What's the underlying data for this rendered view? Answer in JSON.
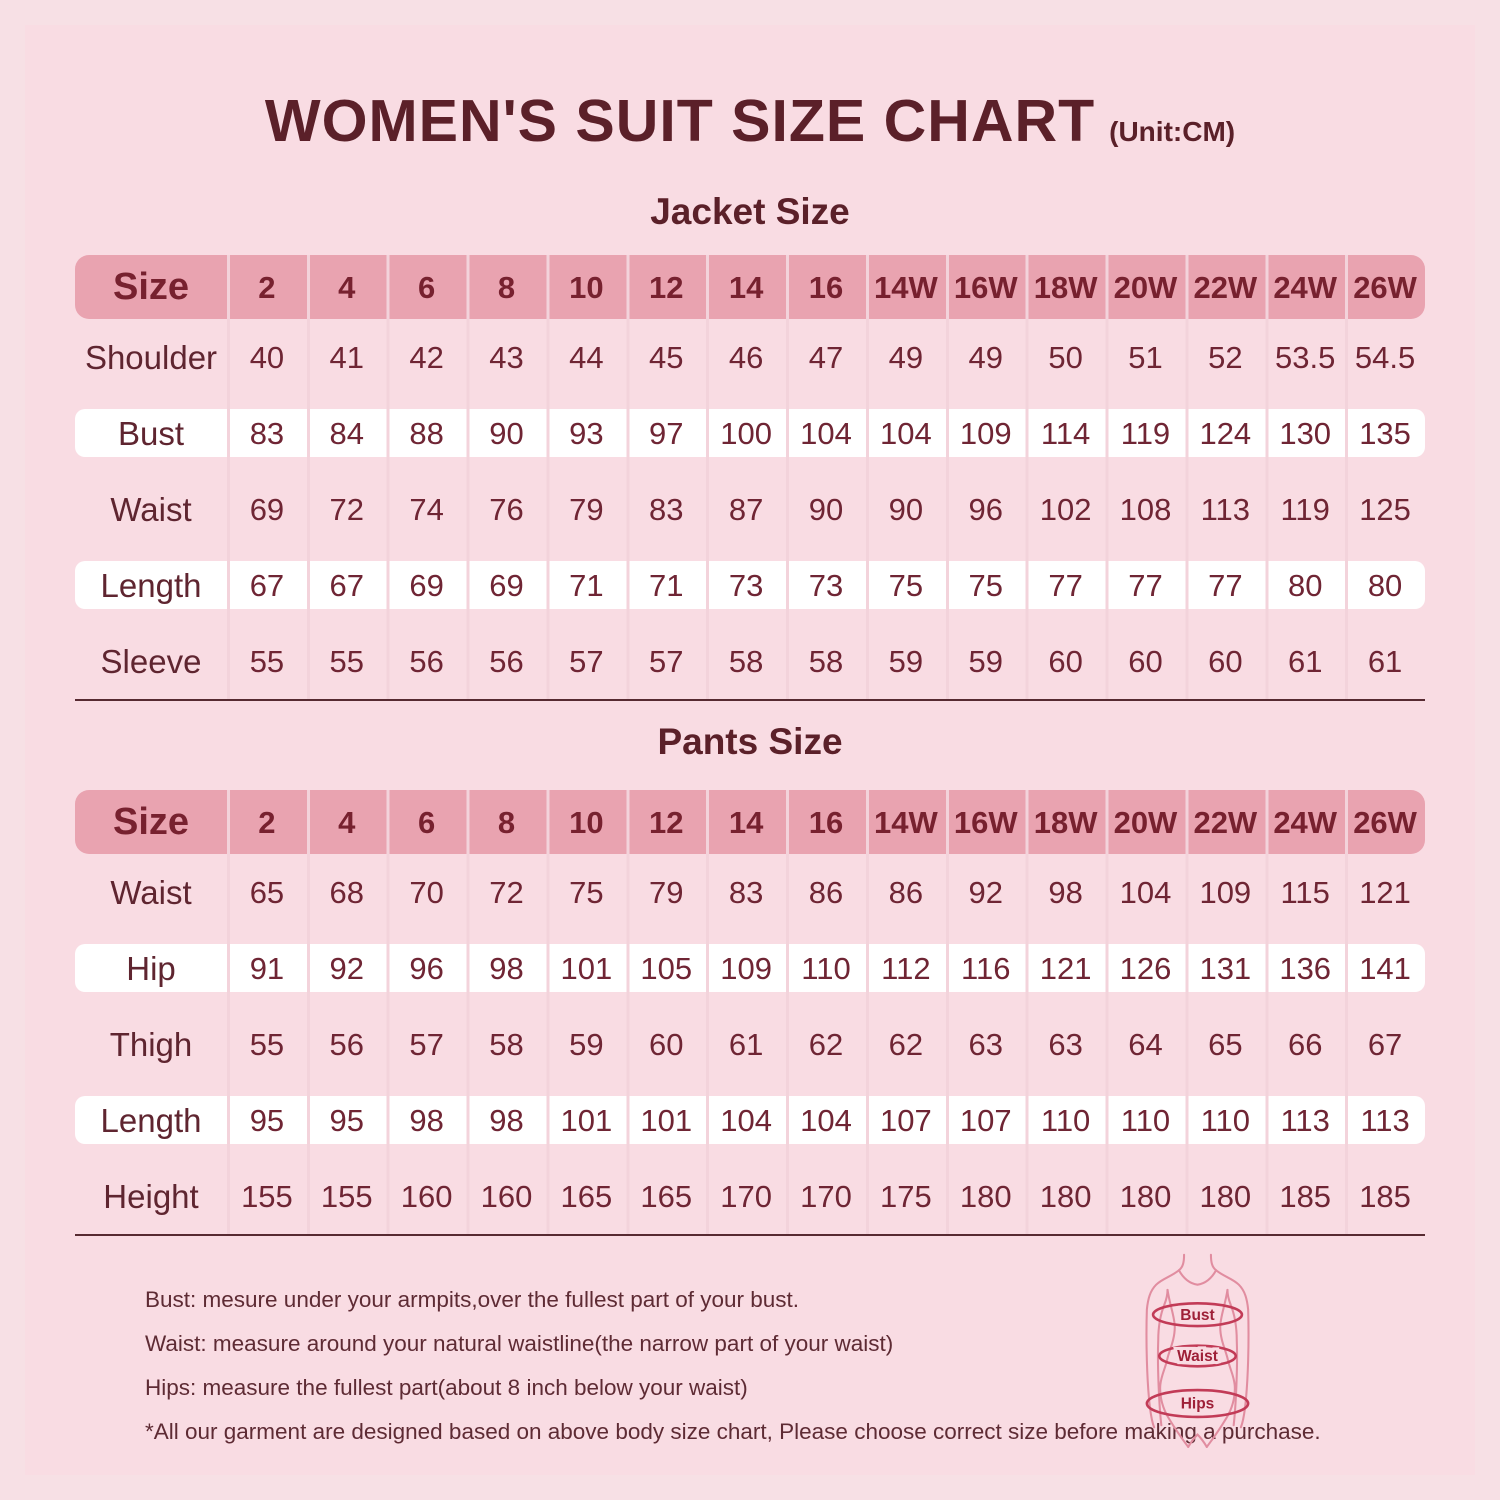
{
  "header": {
    "title": "WOMEN'S SUIT SIZE CHART",
    "unit": "(Unit:CM)"
  },
  "jacket_section": {
    "heading": "Jacket Size",
    "columns": [
      "Size",
      "2",
      "4",
      "6",
      "8",
      "10",
      "12",
      "14",
      "16",
      "14W",
      "16W",
      "18W",
      "20W",
      "22W",
      "24W",
      "26W"
    ],
    "rows": [
      {
        "label": "Shoulder",
        "values": [
          "40",
          "41",
          "42",
          "43",
          "44",
          "45",
          "46",
          "47",
          "49",
          "49",
          "50",
          "51",
          "52",
          "53.5",
          "54.5"
        ]
      },
      {
        "label": "Bust",
        "values": [
          "83",
          "84",
          "88",
          "90",
          "93",
          "97",
          "100",
          "104",
          "104",
          "109",
          "114",
          "119",
          "124",
          "130",
          "135"
        ]
      },
      {
        "label": "Waist",
        "values": [
          "69",
          "72",
          "74",
          "76",
          "79",
          "83",
          "87",
          "90",
          "90",
          "96",
          "102",
          "108",
          "113",
          "119",
          "125"
        ]
      },
      {
        "label": "Length",
        "values": [
          "67",
          "67",
          "69",
          "69",
          "71",
          "71",
          "73",
          "73",
          "75",
          "75",
          "77",
          "77",
          "77",
          "80",
          "80"
        ]
      },
      {
        "label": "Sleeve",
        "values": [
          "55",
          "55",
          "56",
          "56",
          "57",
          "57",
          "58",
          "58",
          "59",
          "59",
          "60",
          "60",
          "60",
          "61",
          "61"
        ]
      }
    ]
  },
  "pants_section": {
    "heading": "Pants Size",
    "columns": [
      "Size",
      "2",
      "4",
      "6",
      "8",
      "10",
      "12",
      "14",
      "16",
      "14W",
      "16W",
      "18W",
      "20W",
      "22W",
      "24W",
      "26W"
    ],
    "rows": [
      {
        "label": "Waist",
        "values": [
          "65",
          "68",
          "70",
          "72",
          "75",
          "79",
          "83",
          "86",
          "86",
          "92",
          "98",
          "104",
          "109",
          "115",
          "121"
        ]
      },
      {
        "label": "Hip",
        "values": [
          "91",
          "92",
          "96",
          "98",
          "101",
          "105",
          "109",
          "110",
          "112",
          "116",
          "121",
          "126",
          "131",
          "136",
          "141"
        ]
      },
      {
        "label": "Thigh",
        "values": [
          "55",
          "56",
          "57",
          "58",
          "59",
          "60",
          "61",
          "62",
          "62",
          "63",
          "63",
          "64",
          "65",
          "66",
          "67"
        ]
      },
      {
        "label": "Length",
        "values": [
          "95",
          "95",
          "98",
          "98",
          "101",
          "101",
          "104",
          "104",
          "107",
          "107",
          "110",
          "110",
          "110",
          "113",
          "113"
        ]
      },
      {
        "label": "Height",
        "values": [
          "155",
          "155",
          "160",
          "160",
          "165",
          "165",
          "170",
          "170",
          "175",
          "180",
          "180",
          "180",
          "180",
          "185",
          "185"
        ]
      }
    ]
  },
  "notes": [
    "Bust: mesure under your armpits,over the fullest part of your bust.",
    "Waist: measure around your natural waistline(the narrow part of your waist)",
    "Hips: measure the fullest part(about 8 inch below your waist)",
    "*All our garment are designed based on above body size chart, Please choose correct size before making a purchase."
  ],
  "figure": {
    "labels": [
      "Bust",
      "Waist",
      "Hips"
    ]
  },
  "colors": {
    "background": "#f7e0e5",
    "panel": "#f9dce3",
    "header_band": "#e9a3b0",
    "pink_row": "#f9dce3",
    "white_row": "#ffffff",
    "separator": "#f3d3db",
    "divider_line": "#572a31",
    "title_text": "#5b2029",
    "body_text": "#6f2534",
    "figure_outline": "#e18da0",
    "figure_ellipse": "#c23b57"
  }
}
